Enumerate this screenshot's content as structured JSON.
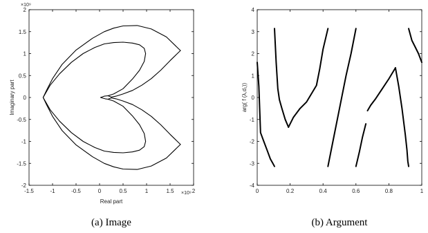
{
  "chart_data": [
    {
      "type": "line",
      "caption": "(a) Image",
      "xlabel": "Real part",
      "ylabel": "Imaginary part",
      "x_multiplier": "×10⁹",
      "y_multiplier": "×10⁹",
      "xlim": [
        -1.5,
        2
      ],
      "ylim": [
        -2,
        2
      ],
      "xticks": [
        -1.5,
        -1,
        -0.5,
        0,
        0.5,
        1,
        1.5,
        2
      ],
      "yticks": [
        -2,
        -1.5,
        -1,
        -0.5,
        0,
        0.5,
        1,
        1.5,
        2
      ],
      "series": [
        {
          "x": [
            1.72,
            1.42,
            1.1,
            0.8,
            0.5,
            0.3,
            0.1,
            -0.15,
            -0.5,
            -0.8,
            -1.0,
            -1.12,
            -1.2,
            -1.12,
            -1.0,
            -0.8,
            -0.5,
            -0.15,
            0.1,
            0.3,
            0.5,
            0.8,
            1.1,
            1.42,
            1.72
          ],
          "y": [
            1.07,
            1.38,
            1.56,
            1.64,
            1.63,
            1.58,
            1.5,
            1.35,
            1.08,
            0.75,
            0.43,
            0.18,
            0,
            -0.18,
            -0.43,
            -0.75,
            -1.08,
            -1.35,
            -1.5,
            -1.58,
            -1.63,
            -1.64,
            -1.56,
            -1.38,
            -1.07
          ]
        },
        {
          "x": [
            1.72,
            1.5,
            1.3,
            1.1,
            0.9,
            0.7,
            0.5,
            0.35,
            0.25,
            0.18,
            0.1,
            0.02,
            0.12,
            0.18,
            0.25,
            0.35,
            0.5,
            0.7,
            0.9,
            1.1,
            1.3,
            1.5,
            1.72
          ],
          "y": [
            1.07,
            0.84,
            0.62,
            0.43,
            0.28,
            0.16,
            0.08,
            0.03,
            0.01,
            0.04,
            0.03,
            0,
            -0.03,
            -0.04,
            -0.01,
            -0.03,
            -0.08,
            -0.16,
            -0.28,
            -0.43,
            -0.62,
            -0.84,
            -1.07
          ]
        },
        {
          "x": [
            0.18,
            0.3,
            0.5,
            0.7,
            0.85,
            0.95,
            0.98,
            0.95,
            0.85,
            0.7,
            0.5,
            0.3,
            0.1,
            -0.1,
            -0.35,
            -0.6,
            -0.85,
            -1.05,
            -1.2,
            -1.05,
            -0.85,
            -0.6,
            -0.35,
            -0.1,
            0.1,
            0.3,
            0.5,
            0.7,
            0.85,
            0.95,
            0.98,
            0.95,
            0.85,
            0.7,
            0.5,
            0.3,
            0.18
          ],
          "y": [
            0.04,
            0.08,
            0.2,
            0.42,
            0.62,
            0.82,
            1.0,
            1.12,
            1.2,
            1.24,
            1.26,
            1.25,
            1.22,
            1.14,
            1.0,
            0.8,
            0.54,
            0.28,
            0,
            -0.28,
            -0.54,
            -0.8,
            -1.0,
            -1.14,
            -1.22,
            -1.25,
            -1.26,
            -1.24,
            -1.2,
            -1.12,
            -1.0,
            -0.82,
            -0.62,
            -0.42,
            -0.2,
            -0.08,
            -0.04
          ]
        }
      ]
    },
    {
      "type": "line",
      "caption": "(b) Argument",
      "xlabel": "",
      "ylabel": "arg( f (λ,d₁))",
      "xlim": [
        0,
        1
      ],
      "ylim": [
        -4,
        4
      ],
      "xticks": [
        0,
        0.2,
        0.4,
        0.6,
        0.8,
        1
      ],
      "yticks": [
        -4,
        -3,
        -2,
        -1,
        0,
        1,
        2,
        3,
        4
      ],
      "series": [
        {
          "x": [
            0,
            0.01,
            0.02,
            0.04,
            0.06,
            0.08,
            0.095,
            0.105
          ],
          "y": [
            1.6,
            0.5,
            -1.6,
            -2.0,
            -2.4,
            -2.8,
            -3.0,
            -3.14
          ]
        },
        {
          "x": [
            0.105,
            0.115,
            0.125,
            0.135,
            0.15,
            0.17,
            0.19
          ],
          "y": [
            3.14,
            1.6,
            0.4,
            -0.1,
            -0.5,
            -1.0,
            -1.35
          ]
        },
        {
          "x": [
            0.19,
            0.22,
            0.26,
            0.3,
            0.36,
            0.38,
            0.4,
            0.43
          ],
          "y": [
            -1.35,
            -0.9,
            -0.5,
            -0.2,
            0.55,
            1.3,
            2.2,
            3.14
          ]
        },
        {
          "x": [
            0.43,
            0.46,
            0.5,
            0.54,
            0.57,
            0.6
          ],
          "y": [
            -3.14,
            -2.0,
            -0.5,
            1.0,
            2.0,
            3.14
          ]
        },
        {
          "x": [
            0.6,
            0.62,
            0.64,
            0.66
          ],
          "y": [
            -3.14,
            -2.5,
            -1.8,
            -1.2
          ]
        },
        {
          "x": [
            0.67,
            0.69,
            0.72,
            0.76,
            0.8,
            0.84
          ],
          "y": [
            -0.6,
            -0.35,
            -0.05,
            0.4,
            0.85,
            1.35
          ]
        },
        {
          "x": [
            0.84,
            0.86,
            0.88,
            0.9,
            0.91,
            0.915,
            0.92
          ],
          "y": [
            1.35,
            0.5,
            -0.5,
            -1.7,
            -2.4,
            -2.9,
            -3.14
          ]
        },
        {
          "x": [
            0.92,
            0.94,
            0.96,
            0.98,
            1.0
          ],
          "y": [
            3.14,
            2.6,
            2.3,
            2.0,
            1.6
          ]
        }
      ]
    }
  ]
}
